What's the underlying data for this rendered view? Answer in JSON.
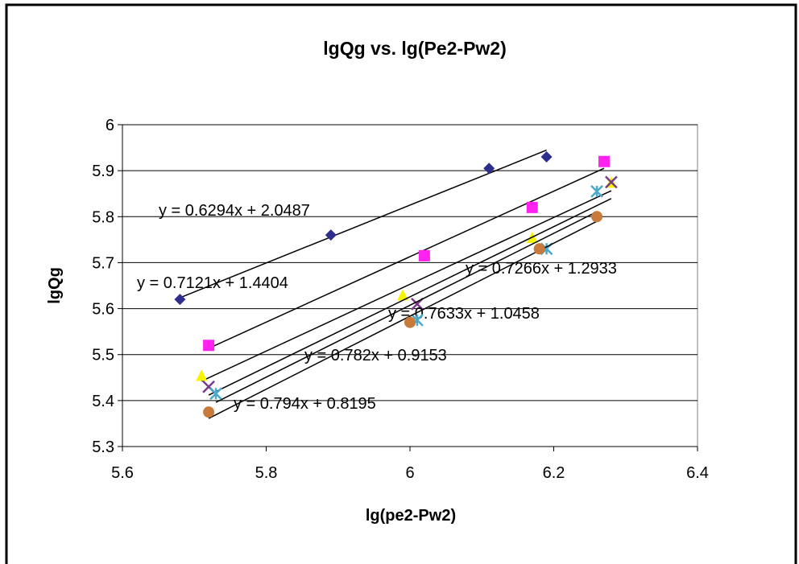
{
  "chart_data": {
    "type": "scatter",
    "title": "lgQg vs. lg(Pe2-Pw2)",
    "x_label": "lg(pe2-Pw2)",
    "y_label": "lgQg",
    "xlim": [
      5.6,
      6.4
    ],
    "xticks": [
      5.6,
      5.8,
      6,
      6.2,
      6.4
    ],
    "ylim": [
      5.3,
      6
    ],
    "yticks": [
      5.3,
      5.4,
      5.5,
      5.6,
      5.7,
      5.8,
      5.9,
      6
    ],
    "grid": true,
    "series": [
      {
        "color": "#2e2e8c",
        "marker": "diamond",
        "x": [
          5.68,
          5.89,
          6.11,
          6.19
        ],
        "values": [
          5.62,
          5.76,
          5.905,
          5.93
        ],
        "trendline": {
          "slope": 0.6294,
          "intercept": 2.0487,
          "label": "y = 0.6294x + 2.0487"
        }
      },
      {
        "color": "#ff22ee",
        "marker": "square",
        "x": [
          5.72,
          6.02,
          6.17,
          6.27
        ],
        "values": [
          5.52,
          5.715,
          5.82,
          5.92
        ],
        "trendline": {
          "slope": 0.7121,
          "intercept": 1.4404,
          "label": "y = 0.7121x + 1.4404"
        }
      },
      {
        "color": "#f5f500",
        "marker": "triangle",
        "x": [
          5.71,
          5.99,
          6.17,
          6.28
        ],
        "values": [
          5.455,
          5.63,
          5.755,
          5.875
        ],
        "trendline": {
          "slope": 0.7266,
          "intercept": 1.2933,
          "label": "y = 0.7266x + 1.2933"
        }
      },
      {
        "color": "#7a3a8a",
        "marker": "x",
        "x": [
          5.72,
          6.01,
          6.28
        ],
        "values": [
          5.43,
          5.61,
          5.875
        ],
        "trendline": {
          "slope": 0.7633,
          "intercept": 1.0458,
          "label": "y = 0.7633x + 1.0458"
        }
      },
      {
        "color": "#4aa8c8",
        "marker": "asterisk",
        "x": [
          5.73,
          6.01,
          6.19,
          6.26
        ],
        "values": [
          5.415,
          5.575,
          5.73,
          5.855
        ],
        "trendline": {
          "slope": 0.782,
          "intercept": 0.9153,
          "label": "y = 0.782x + 0.9153"
        }
      },
      {
        "color": "#c87a3a",
        "marker": "circle",
        "x": [
          5.72,
          6.0,
          6.18,
          6.26
        ],
        "values": [
          5.375,
          5.57,
          5.73,
          5.8
        ],
        "trendline": {
          "slope": 0.794,
          "intercept": 0.8195,
          "label": "y = 0.794x + 0.8195"
        }
      }
    ]
  }
}
